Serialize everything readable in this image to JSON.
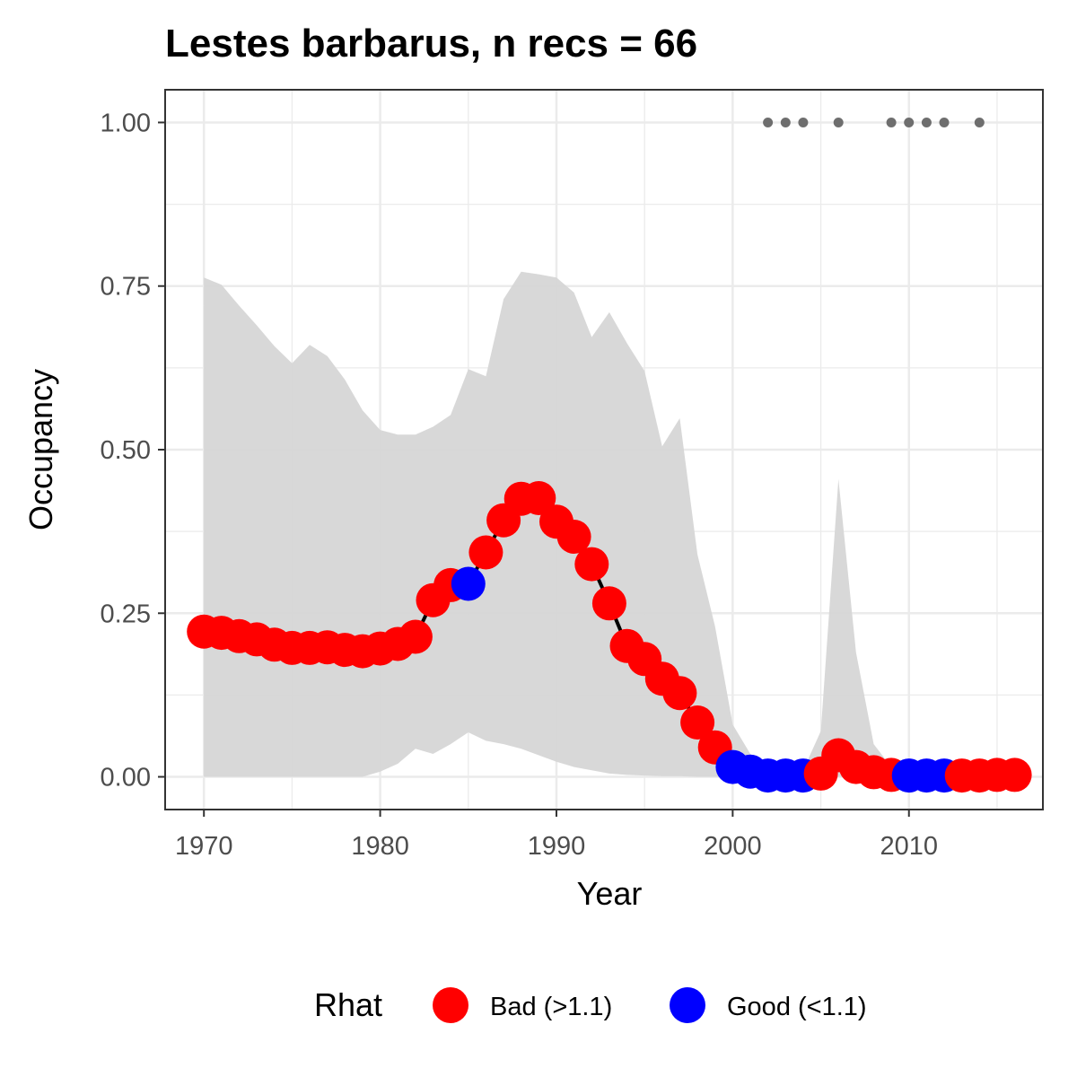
{
  "chart_data": {
    "type": "line",
    "title": "Lestes barbarus, n recs = 66",
    "xlabel": "Year",
    "ylabel": "Occupancy",
    "xlim": [
      1967.8,
      2017.6
    ],
    "ylim": [
      -0.05,
      1.05
    ],
    "x_ticks": [
      1970,
      1980,
      1990,
      2000,
      2010
    ],
    "x_tick_labels": [
      "1970",
      "1980",
      "1990",
      "2000",
      "2010"
    ],
    "y_ticks": [
      0,
      0.25,
      0.5,
      0.75,
      1.0
    ],
    "y_tick_labels": [
      "0.00",
      "0.25",
      "0.50",
      "0.75",
      "1.00"
    ],
    "grid": true,
    "years": [
      1970,
      1971,
      1972,
      1973,
      1974,
      1975,
      1976,
      1977,
      1978,
      1979,
      1980,
      1981,
      1982,
      1983,
      1984,
      1985,
      1986,
      1987,
      1988,
      1989,
      1990,
      1991,
      1992,
      1993,
      1994,
      1995,
      1996,
      1997,
      1998,
      1999,
      2000,
      2001,
      2002,
      2003,
      2004,
      2005,
      2006,
      2007,
      2008,
      2009,
      2010,
      2011,
      2012,
      2013,
      2014,
      2015,
      2016
    ],
    "mean": [
      0.222,
      0.22,
      0.215,
      0.21,
      0.202,
      0.197,
      0.197,
      0.198,
      0.194,
      0.192,
      0.196,
      0.203,
      0.214,
      0.27,
      0.293,
      0.295,
      0.343,
      0.392,
      0.425,
      0.426,
      0.39,
      0.367,
      0.325,
      0.265,
      0.2,
      0.18,
      0.15,
      0.128,
      0.083,
      0.045,
      0.015,
      0.008,
      0.002,
      0.002,
      0.002,
      0.005,
      0.033,
      0.015,
      0.007,
      0.003,
      0.002,
      0.002,
      0.002,
      0.002,
      0.002,
      0.003,
      0.003
    ],
    "rhat": [
      "Bad",
      "Bad",
      "Bad",
      "Bad",
      "Bad",
      "Bad",
      "Bad",
      "Bad",
      "Bad",
      "Bad",
      "Bad",
      "Bad",
      "Bad",
      "Bad",
      "Bad",
      "Good",
      "Bad",
      "Bad",
      "Bad",
      "Bad",
      "Bad",
      "Bad",
      "Bad",
      "Bad",
      "Bad",
      "Bad",
      "Bad",
      "Bad",
      "Bad",
      "Bad",
      "Good",
      "Good",
      "Good",
      "Good",
      "Good",
      "Bad",
      "Bad",
      "Bad",
      "Bad",
      "Bad",
      "Good",
      "Good",
      "Good",
      "Bad",
      "Bad",
      "Bad",
      "Bad"
    ],
    "ci_upper": [
      0.763,
      0.752,
      0.72,
      0.69,
      0.658,
      0.632,
      0.66,
      0.643,
      0.607,
      0.56,
      0.53,
      0.523,
      0.523,
      0.535,
      0.553,
      0.623,
      0.612,
      0.73,
      0.772,
      0.768,
      0.763,
      0.74,
      0.672,
      0.71,
      0.663,
      0.62,
      0.505,
      0.548,
      0.34,
      0.23,
      0.08,
      0.035,
      0.01,
      0.008,
      0.01,
      0.07,
      0.455,
      0.19,
      0.05,
      0.015,
      0.01,
      0.01,
      0.01,
      0.01,
      0.01,
      0.01,
      0.01
    ],
    "ci_lower": [
      0,
      0,
      0,
      0,
      0,
      0,
      0,
      0,
      0,
      0,
      0.008,
      0.02,
      0.043,
      0.035,
      0.05,
      0.068,
      0.055,
      0.05,
      0.043,
      0.033,
      0.023,
      0.015,
      0.01,
      0.005,
      0.003,
      0.002,
      0.001,
      0.001,
      0,
      0,
      0,
      0,
      0,
      0,
      0,
      0,
      0,
      0,
      0,
      0,
      0,
      0,
      0,
      0,
      0,
      0,
      0
    ],
    "record_years": [
      2002,
      2003,
      2004,
      2006,
      2009,
      2010,
      2011,
      2012,
      2014
    ],
    "record_y": 1.0,
    "legend": {
      "title": "Rhat",
      "position": "bottom",
      "entries": [
        {
          "key": "Bad",
          "label": "Bad (>1.1)",
          "color": "#ff0000"
        },
        {
          "key": "Good",
          "label": "Good (<1.1)",
          "color": "#0000ff"
        }
      ]
    },
    "colors": {
      "ribbon": "#d6d6d6",
      "line": "#000000",
      "record_points": "#6e6e6e",
      "grid": "#ebebeb",
      "border": "#333333"
    }
  }
}
